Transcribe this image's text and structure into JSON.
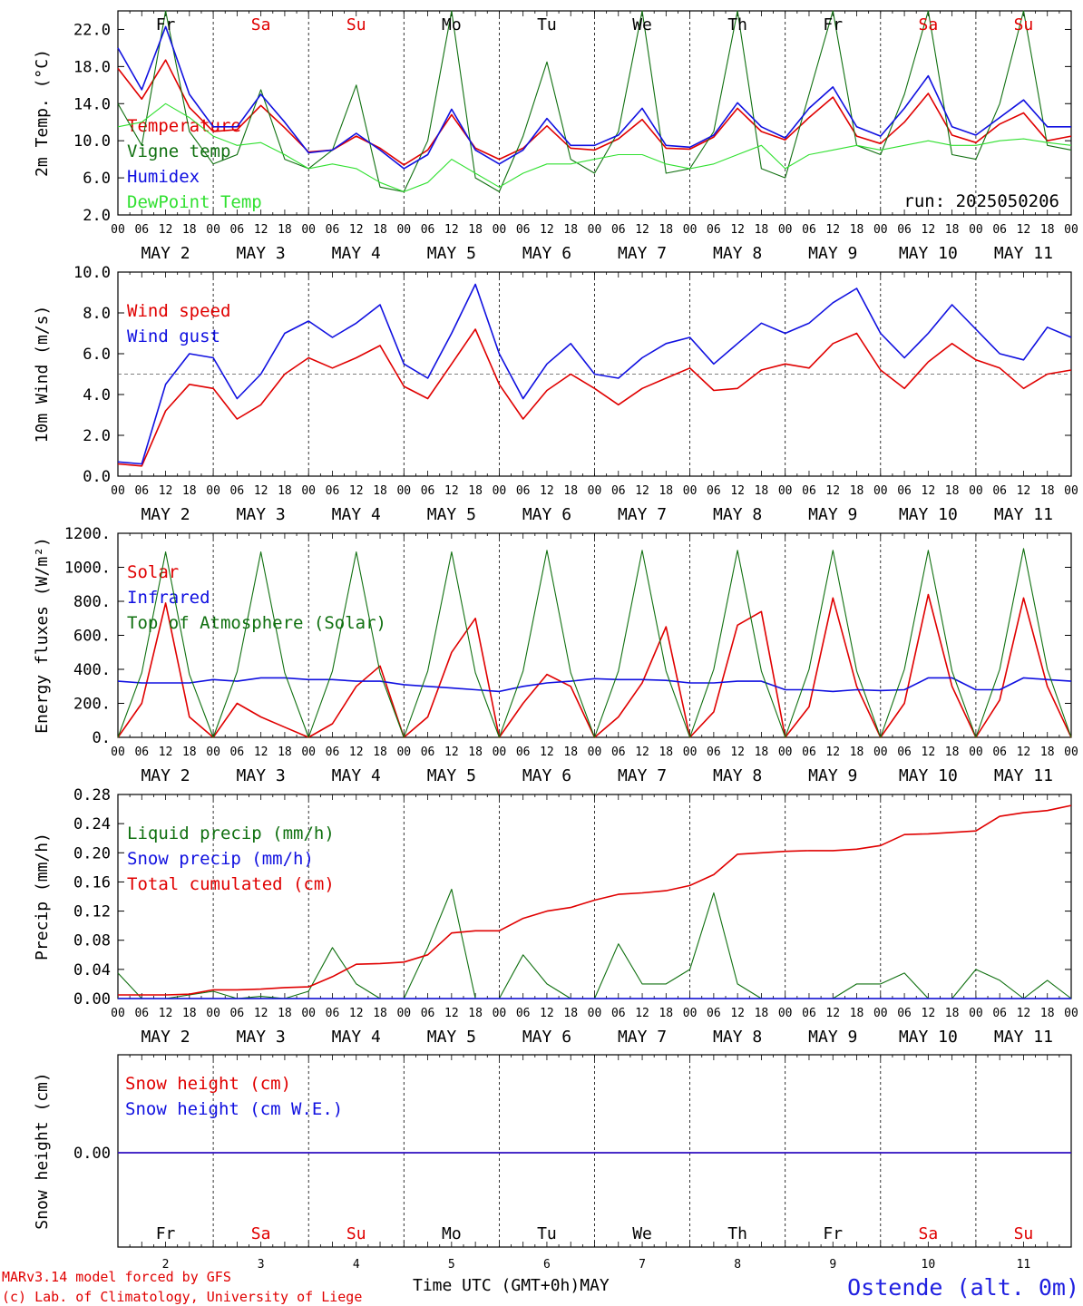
{
  "colors": {
    "red": "#e00000",
    "blue": "#1010e0",
    "green": "#107010",
    "lightgreen": "#30e030",
    "weekend": "#e00000",
    "weekday": "#000000"
  },
  "days": [
    {
      "name": "Fr",
      "date": "MAY  2",
      "num": "2",
      "weekend": false
    },
    {
      "name": "Sa",
      "date": "MAY  3",
      "num": "3",
      "weekend": true
    },
    {
      "name": "Su",
      "date": "MAY  4",
      "num": "4",
      "weekend": true
    },
    {
      "name": "Mo",
      "date": "MAY  5",
      "num": "5",
      "weekend": false
    },
    {
      "name": "Tu",
      "date": "MAY  6",
      "num": "6",
      "weekend": false
    },
    {
      "name": "We",
      "date": "MAY  7",
      "num": "7",
      "weekend": false
    },
    {
      "name": "Th",
      "date": "MAY  8",
      "num": "8",
      "weekend": false
    },
    {
      "name": "Fr",
      "date": "MAY  9",
      "num": "9",
      "weekend": false
    },
    {
      "name": "Sa",
      "date": "MAY 10",
      "num": "10",
      "weekend": true
    },
    {
      "name": "Su",
      "date": "MAY 11",
      "num": "11",
      "weekend": true
    }
  ],
  "hour_ticks": [
    "00",
    "06",
    "12",
    "18"
  ],
  "footer": {
    "model": "MARv3.14 model forced by GFS",
    "copyright": "(c) Lab. of Climatology, University of Liege",
    "xlabel": "Time UTC (GMT+0h)MAY",
    "station": "Ostende (alt. 0m)"
  },
  "chart_data": [
    {
      "type": "line",
      "ylabel": "2m Temp. (°C)",
      "ylim": [
        2.0,
        24.0
      ],
      "yticks": [
        "2.0",
        "6.0",
        "10.0",
        "14.0",
        "18.0",
        "22.0"
      ],
      "run": "run: 2025050206",
      "x_hours": [
        0,
        6,
        12,
        18,
        24,
        30,
        36,
        42,
        48,
        54,
        60,
        66,
        72,
        78,
        84,
        90,
        96,
        102,
        108,
        114,
        120,
        126,
        132,
        138,
        144,
        150,
        156,
        162,
        168,
        174,
        180,
        186,
        192,
        198,
        204,
        210,
        216,
        222,
        228,
        234,
        240
      ],
      "series": [
        {
          "name": "Temperature",
          "color": "red",
          "values": [
            17.8,
            14.5,
            18.7,
            13.6,
            11.0,
            11.2,
            13.8,
            11.4,
            8.8,
            9.0,
            10.5,
            9.2,
            7.4,
            9.0,
            12.8,
            9.2,
            8.0,
            9.2,
            11.6,
            9.2,
            9.0,
            10.2,
            12.3,
            9.2,
            9.1,
            10.4,
            13.5,
            11.0,
            10.1,
            12.5,
            14.7,
            10.5,
            9.7,
            12.0,
            15.1,
            10.6,
            9.8,
            11.8,
            13.0,
            10.0,
            10.5
          ]
        },
        {
          "name": "Vigne temp",
          "color": "green",
          "values": [
            14.0,
            9.5,
            26.0,
            11.0,
            7.5,
            8.5,
            15.5,
            8.0,
            7.0,
            9.0,
            16.0,
            5.0,
            4.5,
            10.0,
            28.0,
            6.0,
            4.5,
            10.5,
            18.5,
            8.0,
            6.5,
            11.0,
            24.0,
            6.5,
            7.0,
            11.0,
            26.0,
            7.0,
            6.0,
            15.0,
            26.0,
            9.5,
            8.5,
            15.0,
            25.5,
            8.5,
            8.0,
            14.0,
            24.0,
            9.5,
            9.0
          ]
        },
        {
          "name": "Humidex",
          "color": "blue",
          "values": [
            20.0,
            15.5,
            22.3,
            15.0,
            11.5,
            11.5,
            15.0,
            12.0,
            8.7,
            9.0,
            10.8,
            9.0,
            7.0,
            8.5,
            13.4,
            9.0,
            7.5,
            9.0,
            12.4,
            9.5,
            9.5,
            10.6,
            13.5,
            9.5,
            9.3,
            10.6,
            14.1,
            11.5,
            10.3,
            13.5,
            15.8,
            11.5,
            10.5,
            13.5,
            17.0,
            11.5,
            10.6,
            12.5,
            14.4,
            11.5,
            11.5
          ]
        },
        {
          "name": "DewPoint Temp",
          "color": "lightgreen",
          "values": [
            11.5,
            12.0,
            14.0,
            12.5,
            10.5,
            9.5,
            9.8,
            8.5,
            7.0,
            7.5,
            7.0,
            5.5,
            4.5,
            5.5,
            8.0,
            6.5,
            5.0,
            6.5,
            7.5,
            7.5,
            8.0,
            8.5,
            8.5,
            7.5,
            7.0,
            7.5,
            8.5,
            9.5,
            7.0,
            8.5,
            9.0,
            9.5,
            9.0,
            9.5,
            10.0,
            9.5,
            9.5,
            10.0,
            10.2,
            9.8,
            9.5
          ]
        }
      ]
    },
    {
      "type": "line",
      "ylabel": "10m Wind (m/s)",
      "ylim": [
        0.0,
        10.0
      ],
      "yticks": [
        "0.0",
        "2.0",
        "4.0",
        "6.0",
        "8.0",
        "10.0"
      ],
      "reference_line": 5.0,
      "x_hours": [
        0,
        6,
        12,
        18,
        24,
        30,
        36,
        42,
        48,
        54,
        60,
        66,
        72,
        78,
        84,
        90,
        96,
        102,
        108,
        114,
        120,
        126,
        132,
        138,
        144,
        150,
        156,
        162,
        168,
        174,
        180,
        186,
        192,
        198,
        204,
        210,
        216,
        222,
        228,
        234,
        240
      ],
      "series": [
        {
          "name": "Wind speed",
          "color": "red",
          "values": [
            0.6,
            0.5,
            3.2,
            4.5,
            4.3,
            2.8,
            3.5,
            5.0,
            5.8,
            5.3,
            5.8,
            6.4,
            4.4,
            3.8,
            5.5,
            7.2,
            4.5,
            2.8,
            4.2,
            5.0,
            4.3,
            3.5,
            4.3,
            4.8,
            5.3,
            4.2,
            4.3,
            5.2,
            5.5,
            5.3,
            6.5,
            7.0,
            5.2,
            4.3,
            5.6,
            6.5,
            5.7,
            5.3,
            4.3,
            5.0,
            5.2
          ]
        },
        {
          "name": "Wind gust",
          "color": "blue",
          "values": [
            0.7,
            0.6,
            4.5,
            6.0,
            5.8,
            3.8,
            5.0,
            7.0,
            7.6,
            6.8,
            7.5,
            8.4,
            5.5,
            4.8,
            7.0,
            9.4,
            6.0,
            3.8,
            5.5,
            6.5,
            5.0,
            4.8,
            5.8,
            6.5,
            6.8,
            5.5,
            6.5,
            7.5,
            7.0,
            7.5,
            8.5,
            9.2,
            7.0,
            5.8,
            7.0,
            8.4,
            7.2,
            6.0,
            5.7,
            7.3,
            6.8
          ]
        }
      ]
    },
    {
      "type": "line",
      "ylabel": "Energy fluxes (W/m²)",
      "ylim": [
        0,
        1200
      ],
      "yticks": [
        "0.",
        "200.",
        "400.",
        "600.",
        "800.",
        "1000.",
        "1200."
      ],
      "x_hours": [
        0,
        6,
        12,
        18,
        24,
        30,
        36,
        42,
        48,
        54,
        60,
        66,
        72,
        78,
        84,
        90,
        96,
        102,
        108,
        114,
        120,
        126,
        132,
        138,
        144,
        150,
        156,
        162,
        168,
        174,
        180,
        186,
        192,
        198,
        204,
        210,
        216,
        222,
        228,
        234,
        240
      ],
      "series": [
        {
          "name": "Solar",
          "color": "red",
          "values": [
            0,
            200,
            790,
            120,
            0,
            200,
            120,
            60,
            0,
            80,
            300,
            420,
            0,
            120,
            500,
            700,
            0,
            200,
            370,
            300,
            0,
            120,
            320,
            650,
            0,
            150,
            660,
            740,
            0,
            180,
            820,
            300,
            0,
            200,
            840,
            300,
            0,
            220,
            820,
            300,
            0
          ]
        },
        {
          "name": "Infrared",
          "color": "blue",
          "values": [
            330,
            320,
            320,
            320,
            340,
            330,
            350,
            350,
            340,
            340,
            330,
            330,
            310,
            300,
            290,
            280,
            270,
            300,
            320,
            330,
            345,
            340,
            340,
            335,
            320,
            320,
            330,
            330,
            280,
            280,
            270,
            280,
            275,
            280,
            350,
            350,
            280,
            280,
            350,
            340,
            330
          ]
        },
        {
          "name": "Top of Atmosphere (Solar)",
          "color": "green",
          "values": [
            0,
            380,
            1090,
            370,
            0,
            385,
            1090,
            380,
            0,
            390,
            1090,
            380,
            0,
            390,
            1090,
            380,
            0,
            390,
            1100,
            380,
            0,
            390,
            1100,
            390,
            0,
            400,
            1100,
            390,
            0,
            400,
            1100,
            390,
            0,
            400,
            1100,
            390,
            0,
            400,
            1110,
            400,
            0
          ]
        }
      ]
    },
    {
      "type": "line",
      "ylabel": "Precip (mm/h)",
      "ylim": [
        0.0,
        0.28
      ],
      "yticks": [
        "0.00",
        "0.04",
        "0.08",
        "0.12",
        "0.16",
        "0.20",
        "0.24",
        "0.28"
      ],
      "x_hours": [
        0,
        6,
        12,
        18,
        24,
        30,
        36,
        42,
        48,
        54,
        60,
        66,
        72,
        78,
        84,
        90,
        96,
        102,
        108,
        114,
        120,
        126,
        132,
        138,
        144,
        150,
        156,
        162,
        168,
        174,
        180,
        186,
        192,
        198,
        204,
        210,
        216,
        222,
        228,
        234,
        240
      ],
      "series": [
        {
          "name": "Liquid precip (mm/h)",
          "color": "green",
          "values": [
            0.035,
            0.0,
            0.0,
            0.005,
            0.01,
            0.0,
            0.003,
            0.0,
            0.01,
            0.07,
            0.02,
            0.0,
            0.0,
            0.07,
            0.15,
            0.0,
            0.0,
            0.06,
            0.02,
            0.0,
            0.0,
            0.075,
            0.02,
            0.02,
            0.04,
            0.145,
            0.02,
            0.0,
            0.0,
            0.0,
            0.0,
            0.02,
            0.02,
            0.035,
            0.0,
            0.0,
            0.04,
            0.025,
            0.0,
            0.025,
            0.0
          ]
        },
        {
          "name": "Snow precip (mm/h)",
          "color": "blue",
          "values": [
            0,
            0,
            0,
            0,
            0,
            0,
            0,
            0,
            0,
            0,
            0,
            0,
            0,
            0,
            0,
            0,
            0,
            0,
            0,
            0,
            0,
            0,
            0,
            0,
            0,
            0,
            0,
            0,
            0,
            0,
            0,
            0,
            0,
            0,
            0,
            0,
            0,
            0,
            0,
            0,
            0
          ]
        },
        {
          "name": "Total cumulated (cm)",
          "color": "red",
          "values": [
            0.005,
            0.005,
            0.005,
            0.006,
            0.012,
            0.012,
            0.013,
            0.015,
            0.016,
            0.03,
            0.047,
            0.048,
            0.05,
            0.06,
            0.09,
            0.093,
            0.093,
            0.11,
            0.12,
            0.125,
            0.135,
            0.143,
            0.145,
            0.148,
            0.155,
            0.17,
            0.198,
            0.2,
            0.202,
            0.203,
            0.203,
            0.205,
            0.21,
            0.225,
            0.226,
            0.228,
            0.23,
            0.25,
            0.255,
            0.258,
            0.265
          ]
        }
      ]
    },
    {
      "type": "line",
      "ylabel": "Snow height (cm)",
      "yticks": [
        "0.00"
      ],
      "x_hours": [
        0,
        240
      ],
      "series": [
        {
          "name": "Snow height (cm)",
          "color": "red",
          "values": [
            0,
            0
          ]
        },
        {
          "name": "Snow height (cm W.E.)",
          "color": "blue",
          "values": [
            0,
            0
          ]
        }
      ]
    }
  ]
}
